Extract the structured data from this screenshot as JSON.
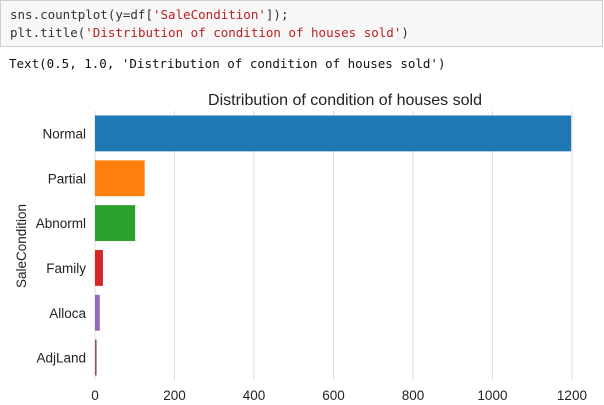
{
  "code": {
    "line1_pre": "sns.countplot(y=df[",
    "line1_str": "'SaleCondition'",
    "line1_post": "]);",
    "line2_pre": "plt.title(",
    "line2_str": "'Distribution of condition of houses sold'",
    "line2_post": ")"
  },
  "output": {
    "text": "Text(0.5, 1.0, 'Distribution of condition of houses sold')"
  },
  "chart_data": {
    "type": "bar",
    "orientation": "horizontal",
    "title": "Distribution of condition of houses sold",
    "ylabel": "SaleCondition",
    "xlabel": "",
    "categories": [
      "Normal",
      "Partial",
      "Abnorml",
      "Family",
      "Alloca",
      "AdjLand"
    ],
    "values": [
      1198,
      125,
      101,
      20,
      12,
      4
    ],
    "colors": [
      "#1f77b4",
      "#ff7f0e",
      "#2ca02c",
      "#d62728",
      "#9467bd",
      "#8c564b"
    ],
    "xticks": [
      0,
      200,
      400,
      600,
      800,
      1000,
      1200
    ],
    "xlim": [
      0,
      1258
    ],
    "grid": "vertical"
  }
}
